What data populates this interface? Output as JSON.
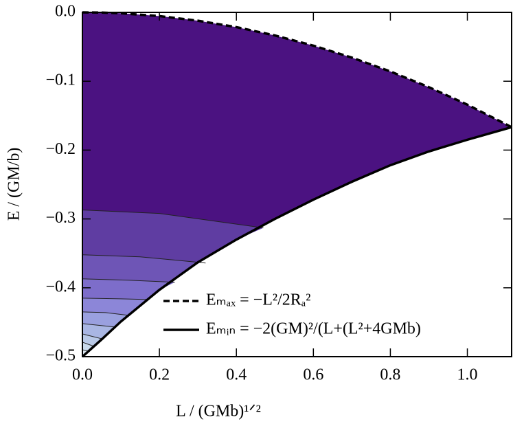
{
  "chart_data": {
    "type": "contour",
    "x_label": "L / (GMb)¹ᐟ²",
    "y_label": "E / (GM/b)",
    "xlim": [
      0,
      1.115
    ],
    "ylim": [
      -0.5,
      0
    ],
    "xticks": [
      {
        "value": 0,
        "label": "0.0"
      },
      0.2,
      0.4,
      0.6,
      0.8,
      {
        "value": 1,
        "label": "1.0"
      }
    ],
    "yticks": [
      {
        "value": 0,
        "label": "0.0"
      },
      {
        "value": -0.1,
        "label": "−0.1"
      },
      {
        "value": -0.2,
        "label": "−0.2"
      },
      {
        "value": -0.3,
        "label": "−0.3"
      },
      {
        "value": -0.4,
        "label": "−0.4"
      },
      {
        "value": -0.5,
        "label": "−0.5"
      }
    ],
    "fill_color": "#4b1281",
    "x": [
      0,
      0.05,
      0.1,
      0.2,
      0.3,
      0.4,
      0.5,
      0.6,
      0.7,
      0.8,
      0.9,
      1.0,
      1.115
    ],
    "series": [
      {
        "name": "Eₘₐₓ = −L²/2Rₐ²",
        "color": "#000000",
        "dash": true,
        "values": [
          0,
          -0.0003,
          -0.0013,
          -0.0054,
          -0.0121,
          -0.0214,
          -0.0335,
          -0.0483,
          -0.0657,
          -0.0858,
          -0.1086,
          -0.134,
          -0.1667
        ]
      },
      {
        "name": "Eₘᵢₙ = −2(GM)²/(L+(L²+4GMb)",
        "color": "#000000",
        "dash": false,
        "values": [
          -0.5,
          -0.475,
          -0.449,
          -0.403,
          -0.363,
          -0.33,
          -0.3,
          -0.272,
          -0.246,
          -0.222,
          -0.202,
          -0.185,
          -0.1667
        ]
      }
    ],
    "contours": [
      {
        "x": [
          0,
          0.2,
          0.47
        ],
        "values": [
          -0.287,
          -0.292,
          -0.313
        ],
        "color": "#5f3da2"
      },
      {
        "x": [
          0,
          0.15,
          0.32
        ],
        "values": [
          -0.352,
          -0.355,
          -0.364
        ],
        "color": "#6e55b6"
      },
      {
        "x": [
          0,
          0.12,
          0.24
        ],
        "values": [
          -0.387,
          -0.389,
          -0.392
        ],
        "color": "#7d6dca"
      },
      {
        "x": [
          0,
          0.1,
          0.17
        ],
        "values": [
          -0.415,
          -0.416,
          -0.417
        ],
        "color": "#8c86d8"
      },
      {
        "x": [
          0,
          0.06,
          0.12
        ],
        "values": [
          -0.435,
          -0.436,
          -0.44
        ],
        "color": "#9aa0df"
      },
      {
        "x": [
          0,
          0.085
        ],
        "values": [
          -0.452,
          -0.457
        ],
        "color": "#a9b6e3"
      },
      {
        "x": [
          0,
          0.05
        ],
        "values": [
          -0.467,
          -0.474
        ],
        "color": "#b9c9e7"
      },
      {
        "x": [
          0,
          0.03
        ],
        "values": [
          -0.479,
          -0.485
        ],
        "color": "#c9d9eb"
      },
      {
        "x": [
          0,
          0.015
        ],
        "values": [
          -0.49,
          -0.492
        ],
        "color": "#dbe6ef"
      }
    ]
  }
}
